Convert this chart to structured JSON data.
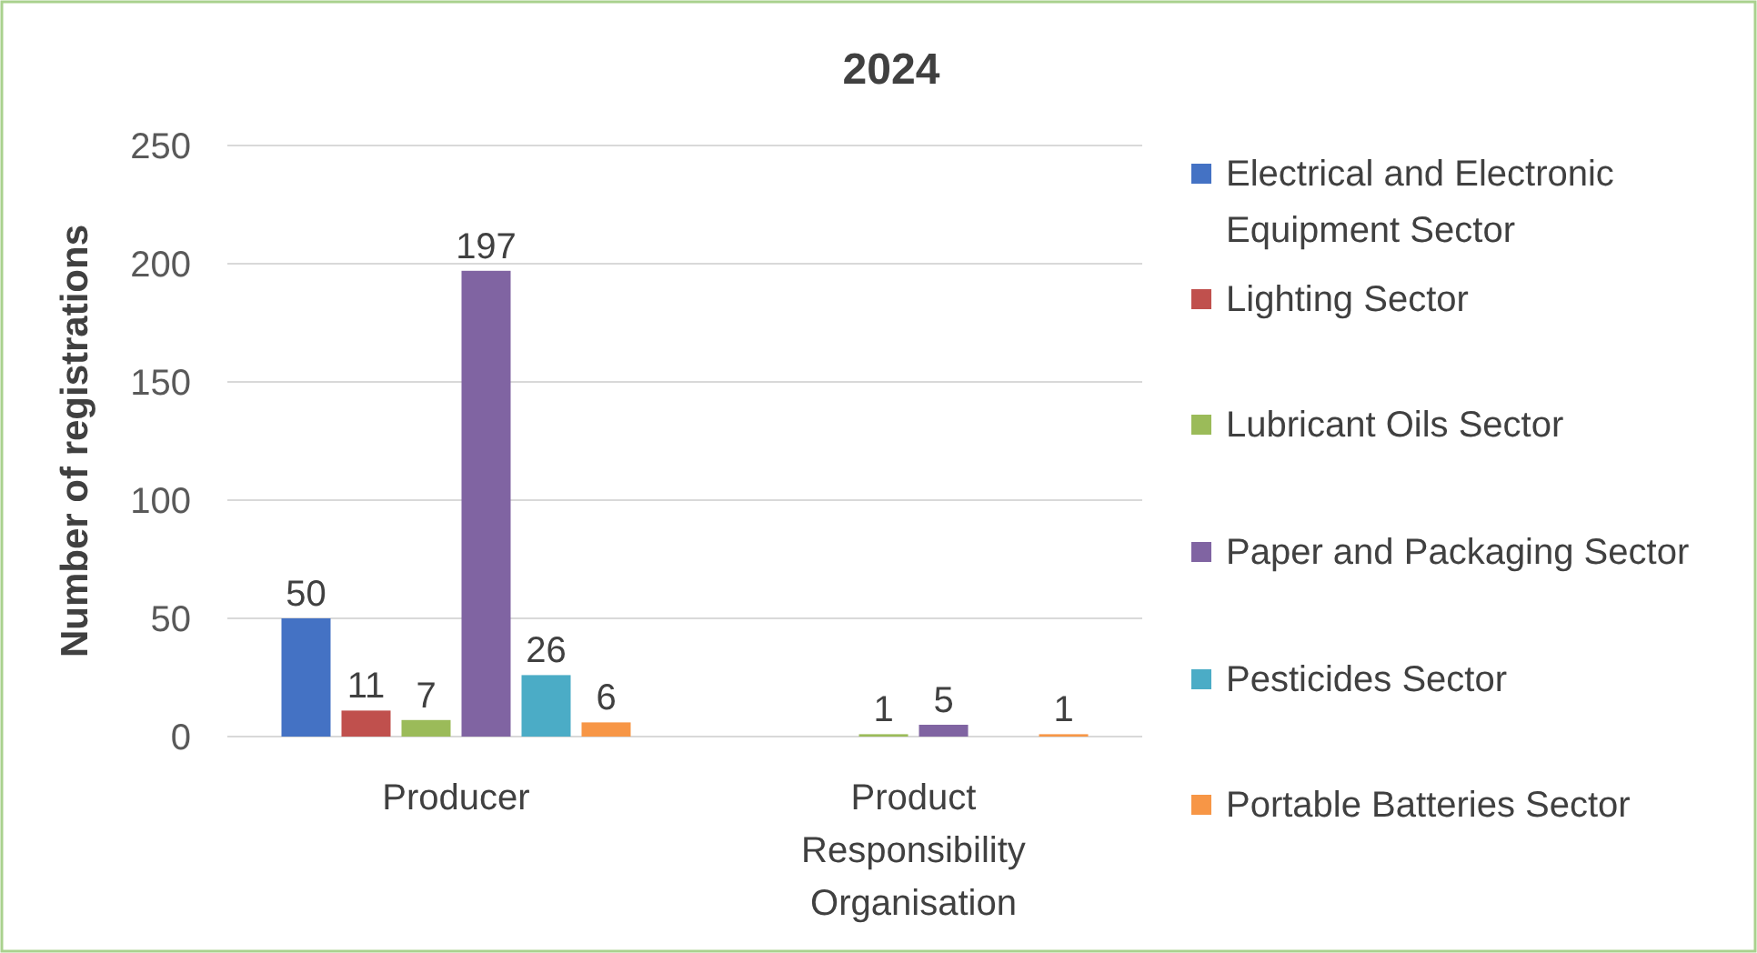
{
  "chart_data": {
    "type": "bar",
    "title": "2024",
    "ylabel": "Number of registrations",
    "categories": [
      "Producer",
      "Product Responsibility Organisation"
    ],
    "series": [
      {
        "name": "Electrical and Electronic Equipment Sector",
        "color": "#4472c4",
        "values": [
          50,
          null
        ]
      },
      {
        "name": "Lighting Sector",
        "color": "#c0504d",
        "values": [
          11,
          null
        ]
      },
      {
        "name": "Lubricant Oils Sector",
        "color": "#9bbb59",
        "values": [
          7,
          1
        ]
      },
      {
        "name": "Paper and Packaging Sector",
        "color": "#8064a2",
        "values": [
          197,
          5
        ]
      },
      {
        "name": "Pesticides Sector",
        "color": "#4bacc6",
        "values": [
          26,
          null
        ]
      },
      {
        "name": "Portable Batteries Sector",
        "color": "#f79646",
        "values": [
          6,
          1
        ]
      }
    ],
    "ylim": [
      0,
      250
    ],
    "yticks": [
      0,
      50,
      100,
      150,
      200,
      250
    ],
    "grid": "y",
    "legend": "right",
    "data_labels": true
  }
}
